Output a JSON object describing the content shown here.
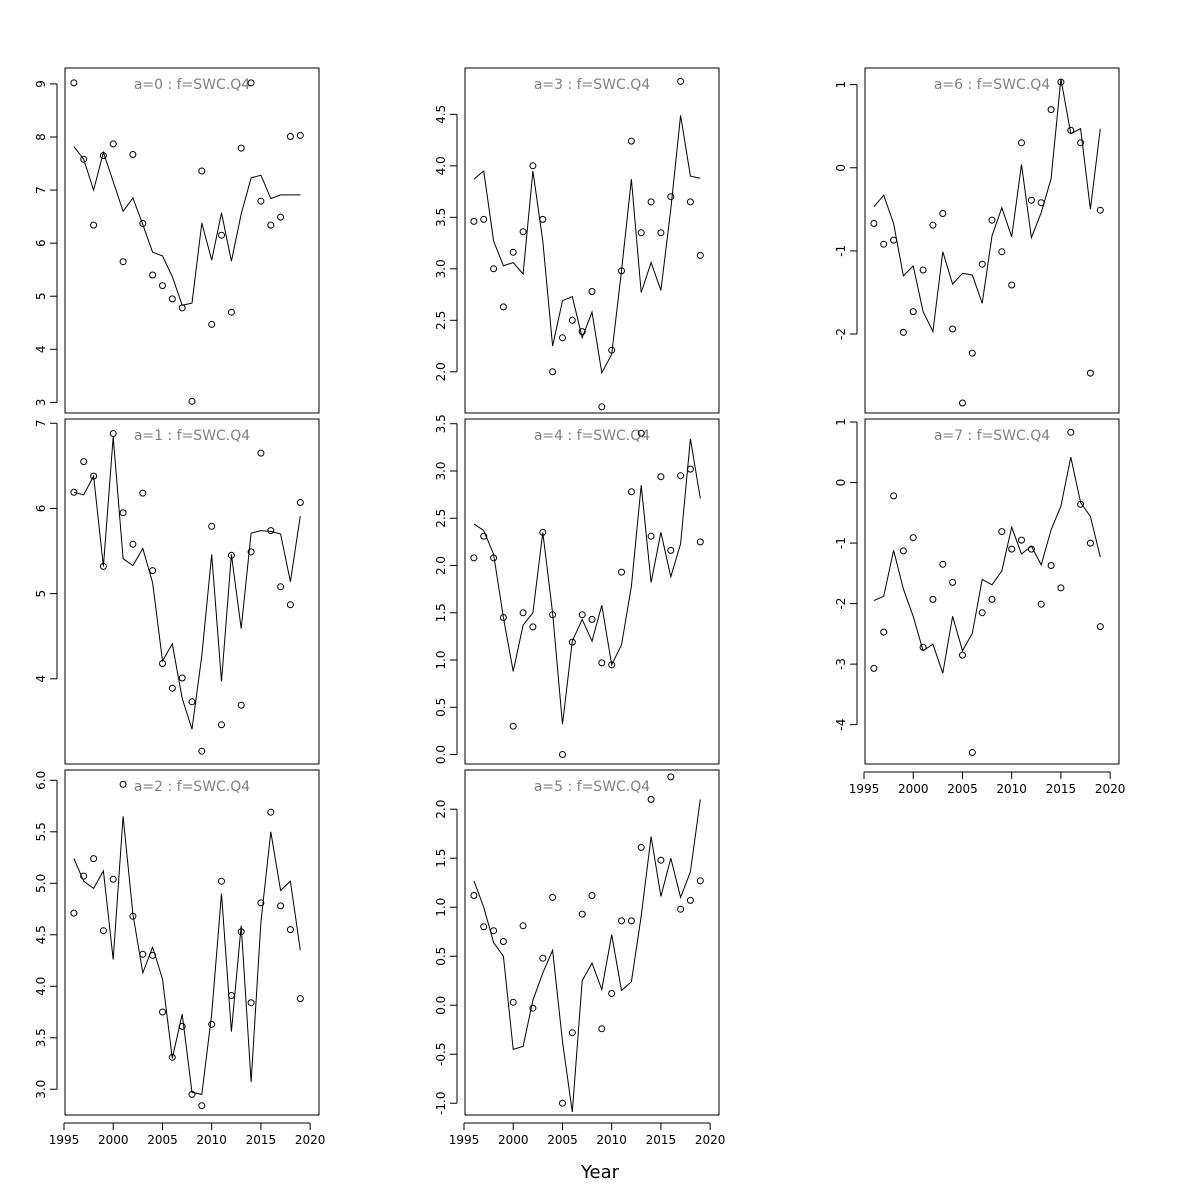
{
  "figure": {
    "xlabel": "Year"
  },
  "chart_data": [
    {
      "type": "scatter",
      "title": "a=0 : f=SWC.Q4",
      "ylim": [
        2.8,
        9.3
      ],
      "yticks": [
        3,
        4,
        5,
        6,
        7,
        8,
        9
      ],
      "x": [
        1996,
        1997,
        1998,
        1999,
        2000,
        2001,
        2002,
        2003,
        2004,
        2005,
        2006,
        2007,
        2008,
        2009,
        2010,
        2011,
        2012,
        2013,
        2014,
        2015,
        2016,
        2017,
        2018,
        2019
      ],
      "observed": [
        9.02,
        7.58,
        6.34,
        7.65,
        7.87,
        5.65,
        7.67,
        6.37,
        5.4,
        5.2,
        4.95,
        4.78,
        3.02,
        7.36,
        4.47,
        6.15,
        4.7,
        7.79,
        9.02,
        6.79,
        6.34,
        6.49,
        8.01,
        8.03
      ],
      "fitted": [
        7.82,
        7.58,
        7.0,
        7.71,
        7.16,
        6.6,
        6.85,
        6.35,
        5.83,
        5.76,
        5.37,
        4.83,
        4.87,
        6.38,
        5.68,
        6.57,
        5.66,
        6.55,
        7.23,
        7.28,
        6.84,
        6.91,
        6.91,
        6.91
      ]
    },
    {
      "type": "scatter",
      "title": "a=1 : f=SWC.Q4",
      "ylim": [
        3.0,
        7.05
      ],
      "yticks": [
        4,
        5,
        6,
        7
      ],
      "x": [
        1996,
        1997,
        1998,
        1999,
        2000,
        2001,
        2002,
        2003,
        2004,
        2005,
        2006,
        2007,
        2008,
        2009,
        2010,
        2011,
        2012,
        2013,
        2014,
        2015,
        2016,
        2017,
        2018,
        2019
      ],
      "observed": [
        6.19,
        6.55,
        6.38,
        5.32,
        6.88,
        5.95,
        5.58,
        6.18,
        5.27,
        4.18,
        3.89,
        4.01,
        3.73,
        3.15,
        5.79,
        3.46,
        5.45,
        3.69,
        5.49,
        6.65,
        5.74,
        5.08,
        4.87,
        6.07
      ],
      "fitted": [
        6.19,
        6.16,
        6.38,
        5.32,
        6.84,
        5.41,
        5.33,
        5.53,
        5.13,
        4.21,
        4.41,
        3.77,
        3.41,
        4.27,
        5.46,
        3.97,
        5.46,
        4.59,
        5.71,
        5.74,
        5.73,
        5.7,
        5.14,
        5.91
      ]
    },
    {
      "type": "scatter",
      "title": "a=2 : f=SWC.Q4",
      "ylim": [
        2.75,
        6.1
      ],
      "yticks": [
        3.0,
        3.5,
        4.0,
        4.5,
        5.0,
        5.5,
        6.0
      ],
      "x": [
        1996,
        1997,
        1998,
        1999,
        2000,
        2001,
        2002,
        2003,
        2004,
        2005,
        2006,
        2007,
        2008,
        2009,
        2010,
        2011,
        2012,
        2013,
        2014,
        2015,
        2016,
        2017,
        2018,
        2019
      ],
      "observed": [
        4.71,
        5.07,
        5.24,
        4.54,
        5.04,
        5.96,
        4.68,
        4.31,
        4.3,
        3.75,
        3.31,
        3.61,
        2.95,
        2.84,
        3.63,
        5.02,
        3.91,
        4.53,
        3.84,
        4.81,
        5.69,
        4.78,
        4.55,
        3.88
      ],
      "fitted": [
        5.24,
        5.02,
        4.95,
        5.12,
        4.26,
        5.65,
        4.7,
        4.13,
        4.38,
        4.07,
        3.3,
        3.73,
        2.97,
        2.95,
        3.73,
        4.9,
        3.56,
        4.59,
        3.07,
        4.62,
        5.5,
        4.93,
        5.02,
        4.35
      ]
    },
    {
      "type": "scatter",
      "title": "a=3 : f=SWC.Q4",
      "ylim": [
        1.6,
        4.95
      ],
      "yticks": [
        2.0,
        2.5,
        3.0,
        3.5,
        4.0,
        4.5
      ],
      "x": [
        1996,
        1997,
        1998,
        1999,
        2000,
        2001,
        2002,
        2003,
        2004,
        2005,
        2006,
        2007,
        2008,
        2009,
        2010,
        2011,
        2012,
        2013,
        2014,
        2015,
        2016,
        2017,
        2018,
        2019
      ],
      "observed": [
        3.46,
        3.48,
        3.0,
        2.63,
        3.16,
        3.36,
        4.0,
        3.48,
        2.0,
        2.33,
        2.5,
        2.39,
        2.78,
        1.66,
        2.21,
        2.98,
        4.24,
        3.35,
        3.65,
        3.35,
        3.7,
        4.82,
        3.65,
        3.13
      ],
      "fitted": [
        3.87,
        3.95,
        3.27,
        3.03,
        3.06,
        2.95,
        3.95,
        3.27,
        2.25,
        2.69,
        2.73,
        2.33,
        2.58,
        1.99,
        2.17,
        2.98,
        3.87,
        2.77,
        3.06,
        2.79,
        3.58,
        4.49,
        3.9,
        3.88
      ]
    },
    {
      "type": "scatter",
      "title": "a=4 : f=SWC.Q4",
      "ylim": [
        -0.1,
        3.55
      ],
      "yticks": [
        0.0,
        0.5,
        1.0,
        1.5,
        2.0,
        2.5,
        3.0,
        3.5
      ],
      "x": [
        1996,
        1997,
        1998,
        1999,
        2000,
        2001,
        2002,
        2003,
        2004,
        2005,
        2006,
        2007,
        2008,
        2009,
        2010,
        2011,
        2012,
        2013,
        2014,
        2015,
        2016,
        2017,
        2018,
        2019
      ],
      "observed": [
        2.08,
        2.31,
        2.08,
        1.45,
        0.3,
        1.5,
        1.35,
        2.35,
        1.48,
        0.0,
        1.19,
        1.48,
        1.43,
        0.97,
        0.95,
        1.93,
        2.78,
        3.4,
        2.31,
        2.94,
        2.16,
        2.95,
        3.02,
        2.25
      ],
      "fitted": [
        2.44,
        2.37,
        2.12,
        1.45,
        0.88,
        1.37,
        1.5,
        2.35,
        1.5,
        0.32,
        1.2,
        1.43,
        1.2,
        1.58,
        0.95,
        1.16,
        1.78,
        2.85,
        1.82,
        2.35,
        1.88,
        2.23,
        3.34,
        2.71
      ]
    },
    {
      "type": "scatter",
      "title": "a=5 : f=SWC.Q4",
      "ylim": [
        -1.12,
        2.4
      ],
      "yticks": [
        -1.0,
        -0.5,
        0.0,
        0.5,
        1.0,
        1.5,
        2.0
      ],
      "x": [
        1996,
        1997,
        1998,
        1999,
        2000,
        2001,
        2002,
        2003,
        2004,
        2005,
        2006,
        2007,
        2008,
        2009,
        2010,
        2011,
        2012,
        2013,
        2014,
        2015,
        2016,
        2017,
        2018,
        2019
      ],
      "observed": [
        1.12,
        0.8,
        0.76,
        0.65,
        0.03,
        0.81,
        -0.03,
        0.48,
        1.1,
        -1.0,
        -0.28,
        0.93,
        1.12,
        -0.24,
        0.12,
        0.86,
        0.86,
        1.61,
        2.1,
        1.48,
        2.33,
        0.98,
        1.07,
        1.27
      ],
      "fitted": [
        1.27,
        1.0,
        0.64,
        0.5,
        -0.45,
        -0.42,
        0.05,
        0.33,
        0.56,
        -0.37,
        -1.09,
        0.25,
        0.43,
        0.16,
        0.72,
        0.15,
        0.24,
        0.91,
        1.72,
        1.11,
        1.5,
        1.1,
        1.36,
        2.1
      ]
    },
    {
      "type": "scatter",
      "title": "a=6 : f=SWC.Q4",
      "ylim": [
        -2.95,
        1.2
      ],
      "yticks": [
        -2,
        -1,
        0,
        1
      ],
      "x": [
        1996,
        1997,
        1998,
        1999,
        2000,
        2001,
        2002,
        2003,
        2004,
        2005,
        2006,
        2007,
        2008,
        2009,
        2010,
        2011,
        2012,
        2013,
        2014,
        2015,
        2016,
        2017,
        2018,
        2019
      ],
      "observed": [
        -0.67,
        -0.92,
        -0.87,
        -1.98,
        -1.73,
        -1.23,
        -0.69,
        -0.55,
        -1.94,
        -2.83,
        -2.23,
        -1.16,
        -0.63,
        -1.01,
        -1.41,
        0.3,
        -0.39,
        -0.42,
        0.7,
        1.03,
        0.45,
        0.3,
        -2.47,
        -0.51
      ],
      "fitted": [
        -0.47,
        -0.33,
        -0.67,
        -1.3,
        -1.18,
        -1.73,
        -1.97,
        -1.01,
        -1.4,
        -1.27,
        -1.29,
        -1.63,
        -0.82,
        -0.48,
        -0.83,
        0.04,
        -0.84,
        -0.54,
        -0.13,
        1.07,
        0.41,
        0.47,
        -0.5,
        0.47
      ]
    },
    {
      "type": "scatter",
      "title": "a=7 : f=SWC.Q4",
      "ylim": [
        -4.65,
        1.05
      ],
      "yticks": [
        -4,
        -3,
        -2,
        -1,
        0,
        1
      ],
      "x": [
        1996,
        1997,
        1998,
        1999,
        2000,
        2001,
        2002,
        2003,
        2004,
        2005,
        2006,
        2007,
        2008,
        2009,
        2010,
        2011,
        2012,
        2013,
        2014,
        2015,
        2016,
        2017,
        2018,
        2019
      ],
      "observed": [
        -3.07,
        -2.47,
        -0.22,
        -1.13,
        -0.91,
        -2.72,
        -1.93,
        -1.35,
        -1.65,
        -2.85,
        -4.46,
        -2.15,
        -1.93,
        -0.81,
        -1.1,
        -0.95,
        -1.1,
        -2.01,
        -1.37,
        -1.74,
        0.83,
        -0.36,
        -1.0,
        -2.38
      ],
      "fitted": [
        -1.95,
        -1.88,
        -1.12,
        -1.76,
        -2.21,
        -2.78,
        -2.67,
        -3.15,
        -2.21,
        -2.78,
        -2.49,
        -1.6,
        -1.69,
        -1.46,
        -0.74,
        -1.18,
        -1.05,
        -1.36,
        -0.78,
        -0.39,
        0.42,
        -0.33,
        -0.56,
        -1.23
      ]
    }
  ],
  "x_axis": {
    "ticks": [
      1995,
      2000,
      2005,
      2010,
      2015,
      2020
    ],
    "tick_labels": [
      "1995",
      "2000",
      "2005",
      "2010",
      "2015",
      "2020"
    ]
  }
}
